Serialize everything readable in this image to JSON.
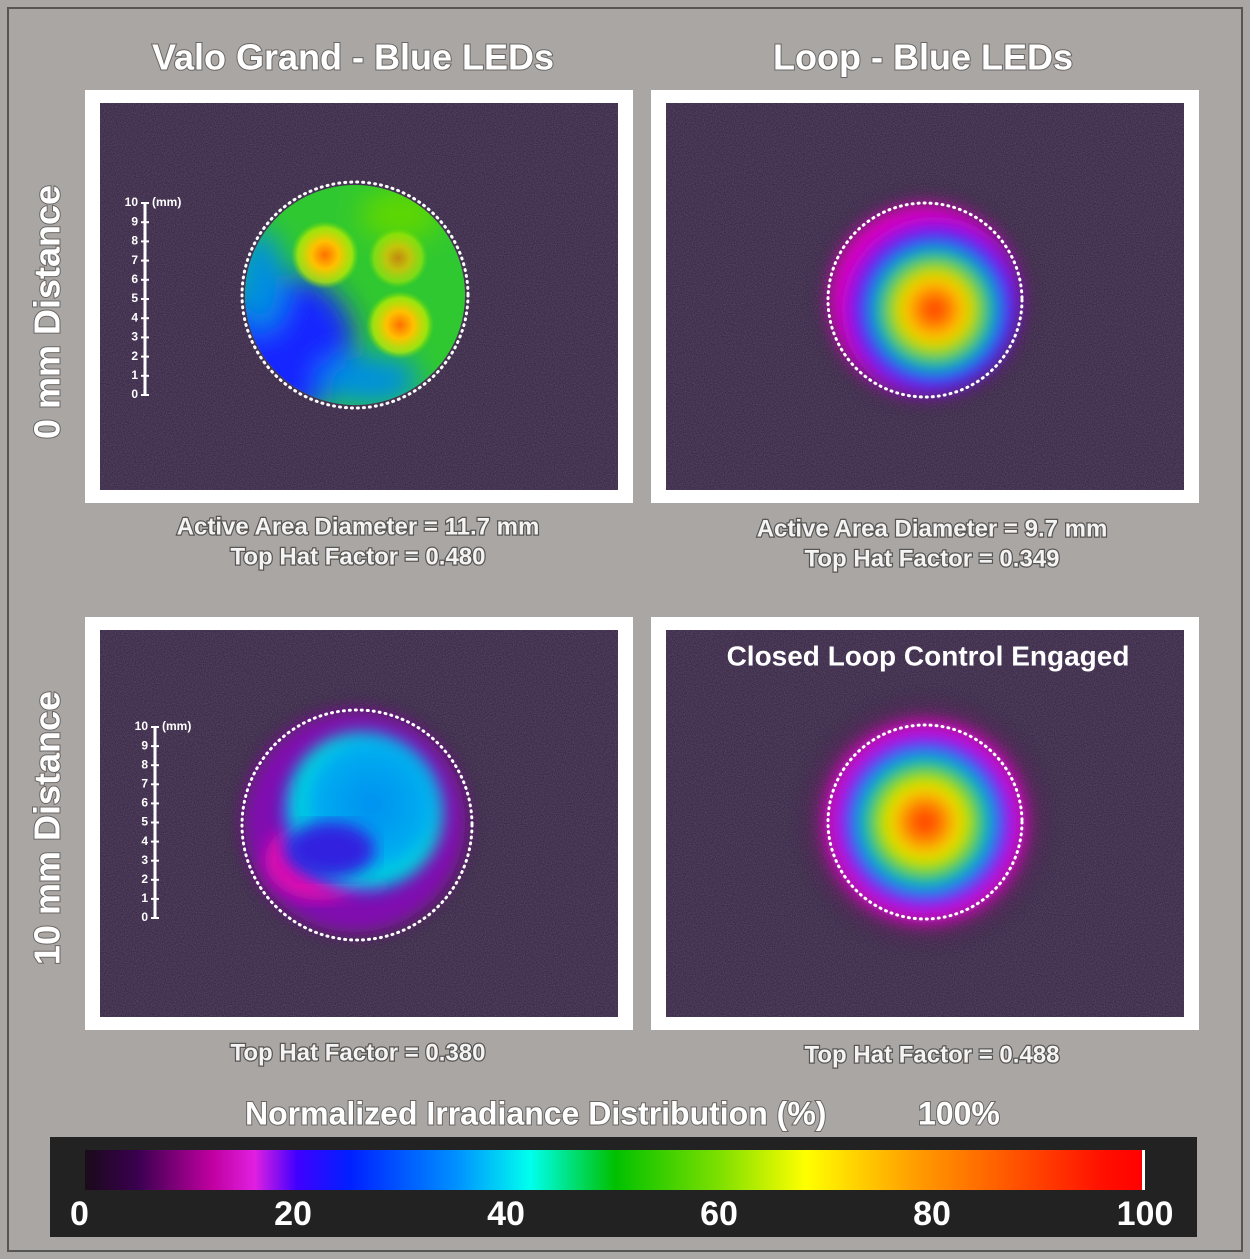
{
  "columns": [
    "Valo Grand - Blue LEDs",
    "Loop - Blue LEDs"
  ],
  "rows": [
    "0 mm Distance",
    "10 mm Distance"
  ],
  "panels": [
    {
      "captions": [
        "Active Area Diameter = 11.7 mm",
        "Top Hat Factor = 0.480"
      ]
    },
    {
      "captions": [
        "Active Area Diameter = 9.7 mm",
        "Top Hat Factor = 0.349"
      ]
    },
    {
      "captions": [
        "Top Hat Factor = 0.380"
      ]
    },
    {
      "annotation": "Closed Loop Control Engaged",
      "captions": [
        "Top Hat Factor = 0.488"
      ]
    }
  ],
  "scale_bar": {
    "unit": "(mm)",
    "ticks": [
      0,
      1,
      2,
      3,
      4,
      5,
      6,
      7,
      8,
      9,
      10
    ]
  },
  "colorbar": {
    "title": "Normalized Irradiance Distribution (%)",
    "max_label": "100%",
    "ticks": [
      0,
      20,
      40,
      60,
      80,
      100
    ]
  }
}
